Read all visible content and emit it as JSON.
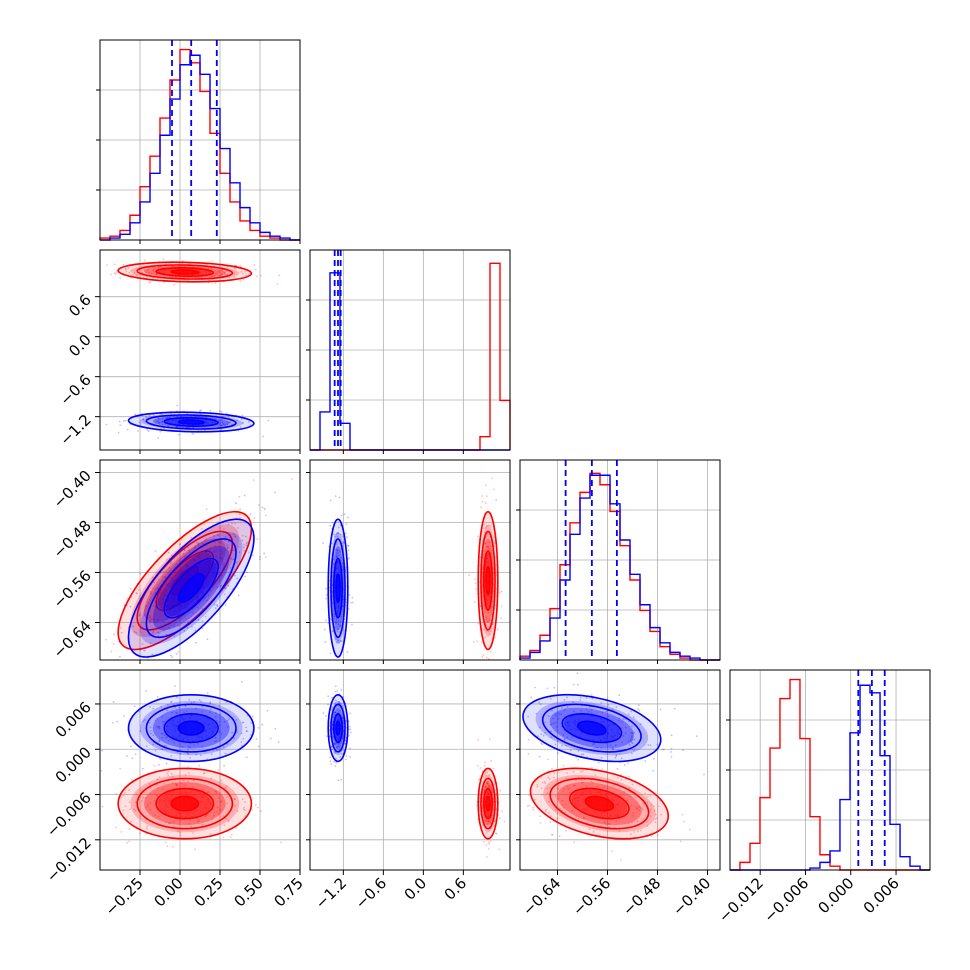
{
  "chart_data": {
    "type": "corner",
    "grid": true,
    "series": [
      {
        "name": "",
        "color": "#ff0000"
      },
      {
        "name": "",
        "color": "#0000ff"
      }
    ],
    "quantile_line_color": "#0000ff",
    "parameters": [
      {
        "index": 0,
        "range": [
          -0.5,
          0.75
        ],
        "ticks": [
          "−0.25",
          "0.00",
          "0.25",
          "0.50",
          "0.75"
        ],
        "tick_values": [
          -0.25,
          0,
          0.25,
          0.5,
          0.75
        ]
      },
      {
        "index": 1,
        "range": [
          -1.7,
          1.3
        ],
        "ticks": [
          "−1.2",
          "−0.6",
          "0.0",
          "0.6"
        ],
        "tick_values": [
          -1.2,
          -0.6,
          0.0,
          0.6
        ]
      },
      {
        "index": 2,
        "range": [
          -0.7,
          -0.38
        ],
        "ticks": [
          "−0.64",
          "−0.56",
          "−0.48",
          "−0.40"
        ],
        "tick_values": [
          -0.64,
          -0.56,
          -0.48,
          -0.4
        ]
      },
      {
        "index": 3,
        "range": [
          -0.016,
          0.0105
        ],
        "ticks": [
          "−0.012",
          "−0.006",
          "0.000",
          "0.006"
        ],
        "tick_values": [
          -0.012,
          -0.006,
          0.0,
          0.006
        ]
      }
    ],
    "y_tick_labels": {
      "1": [
        "0.6",
        "0.0",
        "−0.6",
        "−1.2"
      ],
      "2": [
        "−0.40",
        "−0.48",
        "−0.56",
        "−0.64"
      ],
      "3": [
        "0.006",
        "0.000",
        "−0.006",
        "−0.012"
      ]
    },
    "quantiles_blue": [
      [
        -0.05,
        0.07,
        0.23
      ],
      [
        -1.33,
        -1.28,
        -1.24
      ],
      [
        -0.627,
        -0.585,
        -0.545
      ],
      [
        0.001,
        0.0028,
        0.0045
      ]
    ],
    "histograms": [
      {
        "param": 0,
        "bin_edges": [
          -0.5,
          -0.4375,
          -0.375,
          -0.3125,
          -0.25,
          -0.1875,
          -0.125,
          -0.0625,
          0.0,
          0.0625,
          0.125,
          0.1875,
          0.25,
          0.3125,
          0.375,
          0.4375,
          0.5,
          0.5625,
          0.625,
          0.6875,
          0.75
        ],
        "red": [
          0.01,
          0.02,
          0.05,
          0.13,
          0.28,
          0.44,
          0.64,
          0.84,
          1.0,
          0.93,
          0.78,
          0.56,
          0.35,
          0.2,
          0.1,
          0.05,
          0.02,
          0.01,
          0.0,
          0.0
        ],
        "blue": [
          0.0,
          0.01,
          0.03,
          0.09,
          0.2,
          0.35,
          0.55,
          0.74,
          0.92,
          0.97,
          0.87,
          0.69,
          0.48,
          0.3,
          0.17,
          0.09,
          0.04,
          0.02,
          0.01,
          0.0
        ]
      },
      {
        "param": 1,
        "bin_edges": [
          -1.7,
          -1.55,
          -1.4,
          -1.25,
          -1.1,
          -0.95,
          -0.8,
          -0.65,
          -0.5,
          -0.35,
          -0.2,
          -0.05,
          0.1,
          0.25,
          0.4,
          0.55,
          0.7,
          0.85,
          1.0,
          1.15,
          1.3
        ],
        "red": [
          0,
          0,
          0,
          0,
          0,
          0,
          0,
          0,
          0,
          0,
          0,
          0,
          0,
          0,
          0,
          0,
          0,
          0.07,
          0.98,
          0.26
        ],
        "blue": [
          0,
          0.2,
          0.93,
          0.14,
          0,
          0,
          0,
          0,
          0,
          0,
          0,
          0,
          0,
          0,
          0,
          0,
          0,
          0,
          0,
          0
        ]
      },
      {
        "param": 2,
        "bin_edges": [
          -0.7,
          -0.684,
          -0.668,
          -0.652,
          -0.636,
          -0.62,
          -0.604,
          -0.588,
          -0.572,
          -0.556,
          -0.54,
          -0.524,
          -0.508,
          -0.492,
          -0.476,
          -0.46,
          -0.444,
          -0.428,
          -0.412,
          -0.396,
          -0.38
        ],
        "red": [
          0.02,
          0.05,
          0.13,
          0.27,
          0.5,
          0.72,
          0.88,
          0.98,
          0.92,
          0.78,
          0.6,
          0.42,
          0.26,
          0.15,
          0.07,
          0.03,
          0.01,
          0.0,
          0.0,
          0.0
        ],
        "blue": [
          0.01,
          0.04,
          0.1,
          0.22,
          0.42,
          0.66,
          0.85,
          0.97,
          0.97,
          0.82,
          0.63,
          0.45,
          0.29,
          0.17,
          0.09,
          0.04,
          0.02,
          0.01,
          0.0,
          0.0
        ]
      },
      {
        "param": 3,
        "bin_edges": [
          -0.016,
          -0.01468,
          -0.01335,
          -0.01203,
          -0.0107,
          -0.00938,
          -0.00805,
          -0.00673,
          -0.0054,
          -0.00408,
          -0.00275,
          -0.00143,
          -0.0001,
          0.00123,
          0.00255,
          0.00388,
          0.0052,
          0.00653,
          0.00785,
          0.00918,
          0.0105
        ],
        "red": [
          0.0,
          0.04,
          0.14,
          0.38,
          0.64,
          0.9,
          1.0,
          0.69,
          0.28,
          0.08,
          0.02,
          0.0,
          0.0,
          0.0,
          0.0,
          0.0,
          0.0,
          0.0,
          0.0,
          0.0
        ],
        "blue": [
          0.0,
          0.0,
          0.0,
          0.0,
          0.0,
          0.0,
          0.0,
          0.0,
          0.01,
          0.04,
          0.1,
          0.37,
          0.72,
          0.97,
          0.93,
          0.6,
          0.24,
          0.07,
          0.02,
          0.0
        ]
      }
    ],
    "distributions": {
      "red": {
        "mean": [
          0.03,
          0.97,
          -0.573,
          -0.0072
        ],
        "sd": [
          0.17,
          0.06,
          0.045,
          0.0019
        ],
        "corr_0_2": 0.75
      },
      "blue": {
        "mean": [
          0.07,
          -1.28,
          -0.585,
          0.0028
        ],
        "sd": [
          0.16,
          0.06,
          0.045,
          0.0018
        ],
        "corr_0_2": 0.72
      }
    }
  }
}
